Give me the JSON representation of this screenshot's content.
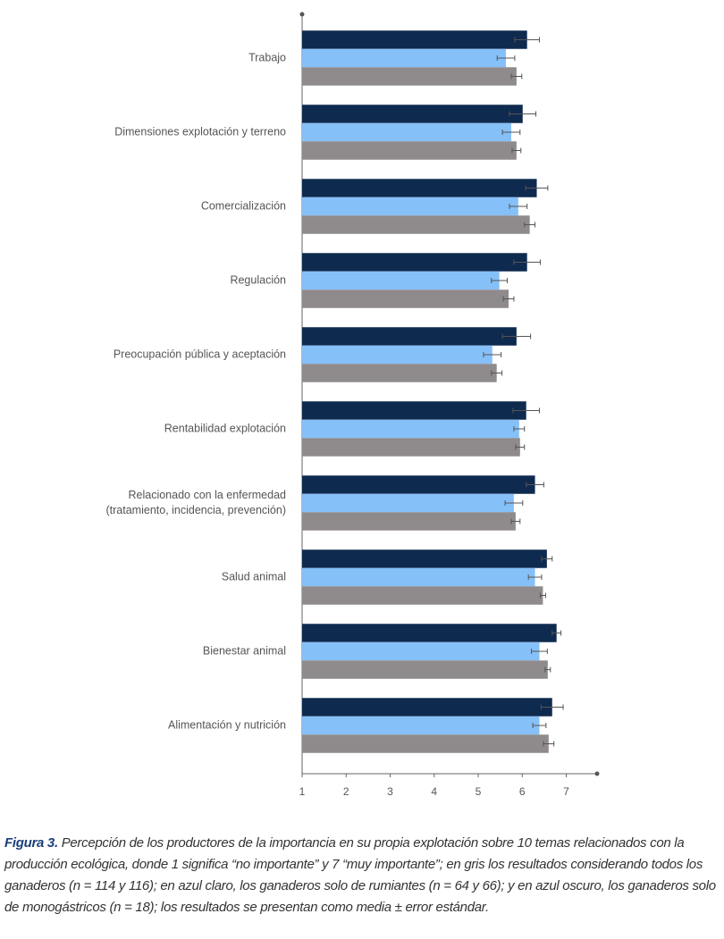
{
  "chart_data": {
    "type": "hbar",
    "categories": [
      "Trabajo",
      "Dimensiones explotación y terreno",
      "Comercialización",
      "Regulación",
      "Preocupación pública y aceptación",
      "Rentabilidad explotación",
      "Relacionado con la enfermedad\n(tratamiento, incidencia, prevención)",
      "Salud animal",
      "Bienestar animal",
      "Alimentación y nutrición"
    ],
    "series": [
      {
        "color": "#0f2a4f",
        "values": [
          6.11,
          6.01,
          6.33,
          6.11,
          5.87,
          6.09,
          6.29,
          6.56,
          6.78,
          6.68
        ],
        "errors": [
          0.28,
          0.3,
          0.25,
          0.3,
          0.32,
          0.3,
          0.2,
          0.12,
          0.1,
          0.25
        ]
      },
      {
        "color": "#86c0f8",
        "values": [
          5.63,
          5.75,
          5.91,
          5.48,
          5.32,
          5.93,
          5.81,
          6.29,
          6.39,
          6.39
        ],
        "errors": [
          0.2,
          0.2,
          0.2,
          0.18,
          0.2,
          0.12,
          0.2,
          0.15,
          0.18,
          0.15
        ]
      },
      {
        "color": "#8f8b8c",
        "values": [
          5.87,
          5.87,
          6.17,
          5.69,
          5.42,
          5.95,
          5.85,
          6.47,
          6.58,
          6.6
        ],
        "errors": [
          0.12,
          0.1,
          0.12,
          0.12,
          0.12,
          0.1,
          0.1,
          0.06,
          0.06,
          0.12
        ]
      }
    ],
    "xlim": [
      1,
      7.7
    ],
    "xticks": [
      1,
      2,
      3,
      4,
      5,
      6,
      7
    ],
    "caption_label": "Figura 3.",
    "caption": "Percepción de los productores de la importancia en su propia explotación sobre 10 temas relacionados con la producción ecológica, donde 1 significa “no importante” y 7 “muy importante”; en gris los resultados considerando todos los ganaderos (n = 114 y 116); en azul claro, los ganaderos solo de rumiantes (n = 64 y 66); y en azul oscuro, los ganaderos solo de monogástricos (n = 18); los resultados se presentan como media ± error estándar."
  }
}
